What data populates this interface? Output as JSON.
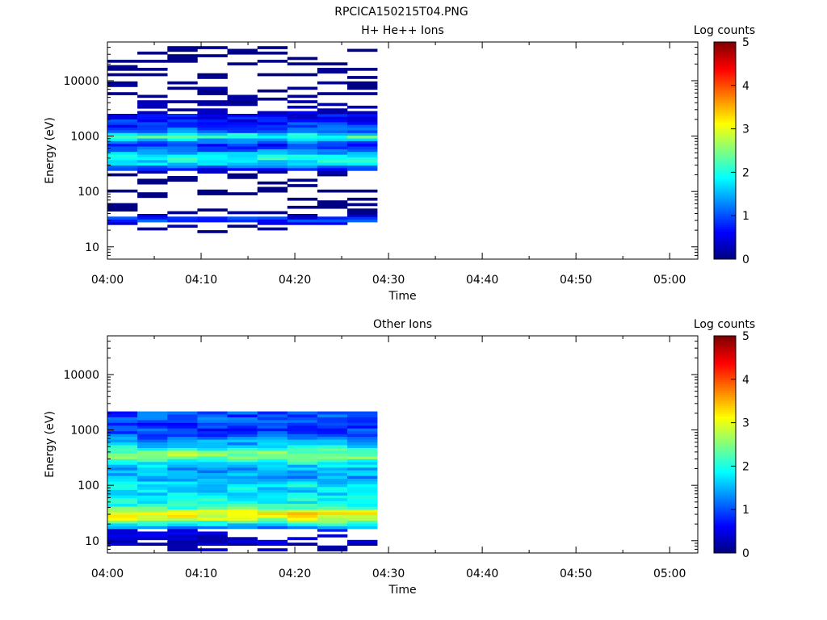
{
  "figure_title": "RPCICA150215T04.PNG",
  "colorbar": {
    "label": "Log counts",
    "ticks": [
      "0",
      "1",
      "2",
      "3",
      "4",
      "5"
    ],
    "range": [
      0,
      5
    ],
    "colormap": "jet"
  },
  "chart_data": [
    {
      "type": "heatmap",
      "title": "H+ He++ Ions",
      "xlabel": "Time",
      "ylabel": "Energy (eV)",
      "x_ticks": [
        "04:00",
        "04:10",
        "04:20",
        "04:30",
        "04:40",
        "04:50",
        "05:00"
      ],
      "xlim_minutes": [
        0,
        63
      ],
      "y_ticks": [
        "10",
        "100",
        "1000",
        "10000"
      ],
      "y_scale": "log",
      "ylim": [
        6,
        50000
      ],
      "time_bins_minutes": [
        [
          0.0,
          3.2
        ],
        [
          3.2,
          6.4
        ],
        [
          6.4,
          9.6
        ],
        [
          9.6,
          12.8
        ],
        [
          12.8,
          16.0
        ],
        [
          16.0,
          19.2
        ],
        [
          19.2,
          22.4
        ],
        [
          22.4,
          25.6
        ],
        [
          25.6,
          28.8
        ]
      ],
      "profile": {
        "energies": [
          10,
          18,
          25,
          30,
          35,
          45,
          60,
          90,
          120,
          160,
          200,
          250,
          300,
          380,
          450,
          600,
          700,
          800,
          1000,
          1200,
          1500,
          2000,
          3000,
          5000,
          8000,
          12000,
          20000,
          30000,
          40000
        ],
        "levels": [
          0.0,
          0.0,
          0.45,
          0.9,
          0.7,
          0.1,
          0.2,
          0.2,
          0.2,
          0.15,
          0.2,
          0.7,
          1.4,
          2.0,
          1.8,
          1.0,
          0.8,
          1.2,
          2.3,
          1.2,
          0.9,
          0.7,
          0.5,
          0.3,
          0.35,
          0.3,
          0.25,
          0.2,
          0.3
        ]
      }
    },
    {
      "type": "heatmap",
      "title": "Other Ions",
      "xlabel": "Time",
      "ylabel": "Energy (eV)",
      "x_ticks": [
        "04:00",
        "04:10",
        "04:20",
        "04:30",
        "04:40",
        "04:50",
        "05:00"
      ],
      "xlim_minutes": [
        0,
        63
      ],
      "y_ticks": [
        "10",
        "100",
        "1000",
        "10000"
      ],
      "y_scale": "log",
      "ylim": [
        6,
        50000
      ],
      "time_bins_minutes": [
        [
          0.0,
          3.2
        ],
        [
          3.2,
          6.4
        ],
        [
          6.4,
          9.6
        ],
        [
          9.6,
          12.8
        ],
        [
          12.8,
          16.0
        ],
        [
          16.0,
          19.2
        ],
        [
          19.2,
          22.4
        ],
        [
          22.4,
          25.6
        ],
        [
          25.6,
          28.8
        ]
      ],
      "profile": {
        "energies": [
          7,
          10,
          12,
          15,
          18,
          22,
          25,
          30,
          35,
          40,
          50,
          60,
          80,
          100,
          130,
          160,
          200,
          250,
          300,
          350,
          400,
          500,
          600,
          800,
          1000,
          1300,
          1600,
          2000,
          2500
        ],
        "levels": [
          0.4,
          0.5,
          0.5,
          0.6,
          1.5,
          2.3,
          2.8,
          3.3,
          2.8,
          2.2,
          2.0,
          1.8,
          1.7,
          1.8,
          1.5,
          1.4,
          1.5,
          1.8,
          2.2,
          2.6,
          2.4,
          1.8,
          1.4,
          1.1,
          0.9,
          0.9,
          1.0,
          1.0,
          0.5
        ]
      }
    }
  ]
}
